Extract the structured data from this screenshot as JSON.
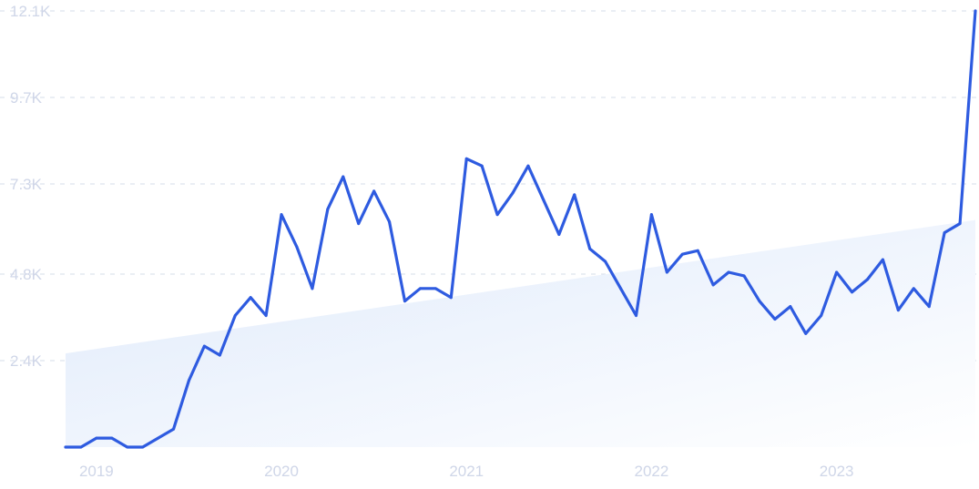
{
  "chart_data": {
    "type": "line",
    "title": "",
    "xlabel": "",
    "ylabel": "",
    "grid": true,
    "legend": "none",
    "colors": {
      "line": "#2e5be0",
      "trend_fill_start": "#dfeafb",
      "trend_fill_end": "#ffffff",
      "grid": "#d6dcea",
      "tick_text": "#cfd6e8"
    },
    "y_ticks": [
      {
        "value": 2400,
        "label": "2.4K"
      },
      {
        "value": 4800,
        "label": "4.8K"
      },
      {
        "value": 7300,
        "label": "7.3K"
      },
      {
        "value": 9700,
        "label": "9.7K"
      },
      {
        "value": 12100,
        "label": "12.1K"
      }
    ],
    "x_ticks": [
      {
        "value": "2019-01",
        "label": "2019"
      },
      {
        "value": "2020-01",
        "label": "2020"
      },
      {
        "value": "2021-01",
        "label": "2021"
      },
      {
        "value": "2022-01",
        "label": "2022"
      },
      {
        "value": "2023-01",
        "label": "2023"
      }
    ],
    "xlim": [
      "2018-11",
      "2023-10"
    ],
    "ylim": [
      0,
      12100
    ],
    "trend": {
      "start": {
        "x": "2018-11",
        "y": 2600
      },
      "end": {
        "x": "2023-10",
        "y": 6300
      }
    },
    "series": [
      {
        "x": [
          "2018-11",
          "2018-12",
          "2019-01",
          "2019-02",
          "2019-03",
          "2019-04",
          "2019-05",
          "2019-06",
          "2019-07",
          "2019-08",
          "2019-09",
          "2019-10",
          "2019-11",
          "2019-12",
          "2020-01",
          "2020-02",
          "2020-03",
          "2020-04",
          "2020-05",
          "2020-06",
          "2020-07",
          "2020-08",
          "2020-09",
          "2020-10",
          "2020-11",
          "2020-12",
          "2021-01",
          "2021-02",
          "2021-03",
          "2021-04",
          "2021-05",
          "2021-06",
          "2021-07",
          "2021-08",
          "2021-09",
          "2021-10",
          "2021-11",
          "2021-12",
          "2022-01",
          "2022-02",
          "2022-03",
          "2022-04",
          "2022-05",
          "2022-06",
          "2022-07",
          "2022-08",
          "2022-09",
          "2022-10",
          "2022-11",
          "2022-12",
          "2023-01",
          "2023-02",
          "2023-03",
          "2023-04",
          "2023-05",
          "2023-06",
          "2023-07",
          "2023-08",
          "2023-09",
          "2023-10"
        ],
        "values": [
          0,
          0,
          250,
          250,
          0,
          0,
          250,
          500,
          1850,
          2800,
          2550,
          3650,
          4150,
          3650,
          6450,
          5550,
          4400,
          6600,
          7500,
          6200,
          7100,
          6250,
          4050,
          4400,
          4400,
          4150,
          8000,
          7800,
          6450,
          7050,
          7800,
          6850,
          5900,
          7000,
          5500,
          5150,
          4400,
          3650,
          6450,
          4850,
          5350,
          5450,
          4500,
          4850,
          4750,
          4050,
          3550,
          3900,
          3150,
          3650,
          4850,
          4300,
          4650,
          5200,
          3800,
          4400,
          3900,
          5950,
          6200,
          12100
        ]
      }
    ]
  }
}
